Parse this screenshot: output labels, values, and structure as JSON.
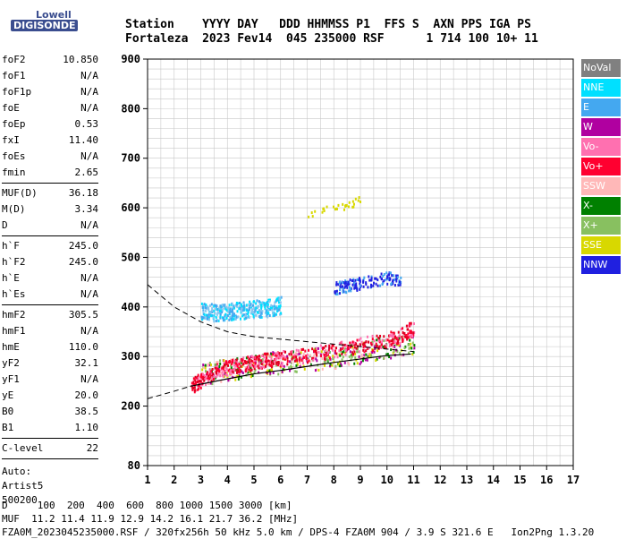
{
  "logo": {
    "line1": "Lowell",
    "line2": "DIGISONDE"
  },
  "header": {
    "line1": "Station    YYYY DAY   DDD HHMMSS P1  FFS S  AXN PPS IGA PS",
    "line2": "Fortaleza  2023 Fev14  045 235000 RSF      1 714 100 10+ 11"
  },
  "params_group1": [
    {
      "name": "foF2",
      "value": "10.850"
    },
    {
      "name": "foF1",
      "value": "N/A"
    },
    {
      "name": "foF1p",
      "value": "N/A"
    },
    {
      "name": "foE",
      "value": "N/A"
    },
    {
      "name": "foEp",
      "value": "0.53"
    },
    {
      "name": "fxI",
      "value": "11.40"
    },
    {
      "name": "foEs",
      "value": "N/A"
    },
    {
      "name": "fmin",
      "value": "2.65"
    }
  ],
  "params_group2": [
    {
      "name": "MUF(D)",
      "value": "36.18"
    },
    {
      "name": "M(D)",
      "value": "3.34"
    },
    {
      "name": "D",
      "value": "N/A"
    }
  ],
  "params_group3": [
    {
      "name": "h`F",
      "value": "245.0"
    },
    {
      "name": "h`F2",
      "value": "245.0"
    },
    {
      "name": "h`E",
      "value": "N/A"
    },
    {
      "name": "h`Es",
      "value": "N/A"
    }
  ],
  "params_group4": [
    {
      "name": "hmF2",
      "value": "305.5"
    },
    {
      "name": "hmF1",
      "value": "N/A"
    },
    {
      "name": "hmE",
      "value": "110.0"
    },
    {
      "name": "yF2",
      "value": "32.1"
    },
    {
      "name": "yF1",
      "value": "N/A"
    },
    {
      "name": "yE",
      "value": "20.0"
    },
    {
      "name": "B0",
      "value": "38.5"
    },
    {
      "name": "B1",
      "value": "1.10"
    }
  ],
  "clevel": {
    "name": "C-level",
    "value": "22"
  },
  "auto": {
    "line1": "Auto:",
    "line2": "Artist5",
    "line3": "500200"
  },
  "legend": [
    {
      "label": "NoVal",
      "color": "#808080"
    },
    {
      "label": "NNE",
      "color": "#00e0ff"
    },
    {
      "label": "E",
      "color": "#44a8f0"
    },
    {
      "label": "W",
      "color": "#b000a0"
    },
    {
      "label": "Vo-",
      "color": "#ff70b0"
    },
    {
      "label": "Vo+",
      "color": "#ff0030"
    },
    {
      "label": "SSW",
      "color": "#ffb8b8"
    },
    {
      "label": "X-",
      "color": "#008000"
    },
    {
      "label": "X+",
      "color": "#88c060"
    },
    {
      "label": "SSE",
      "color": "#d8d800"
    },
    {
      "label": "NNW",
      "color": "#2020e0"
    }
  ],
  "footer": {
    "line1": "D     100  200  400  600  800 1000 1500 3000 [km]",
    "line2": "MUF  11.2 11.4 11.9 12.9 14.2 16.1 21.7 36.2 [MHz]",
    "line3": "FZA0M_2023045235000.RSF / 320fx256h 50 kHz 5.0 km / DPS-4 FZA0M 904 / 3.9 S 321.6 E   Ion2Png 1.3.20"
  },
  "chart_data": {
    "type": "scatter",
    "x_ticks": [
      "1",
      "2",
      "3",
      "4",
      "5",
      "6",
      "7",
      "8",
      "9",
      "10",
      "11",
      "12",
      "13",
      "14",
      "15",
      "16",
      "17"
    ],
    "y_ticks": [
      "80",
      "200",
      "300",
      "400",
      "500",
      "600",
      "700",
      "800",
      "900"
    ],
    "xlim": [
      1,
      17
    ],
    "ylim": [
      80,
      900
    ],
    "grid": true,
    "legend_placement": "right",
    "traces": {
      "o_trace": {
        "x": [
          2.6,
          3.0,
          3.5,
          4.0,
          4.5,
          5.0,
          5.5,
          6.0,
          7.0,
          8.0,
          9.0,
          10.0,
          10.5,
          11.0
        ],
        "y": [
          240,
          255,
          270,
          280,
          285,
          290,
          295,
          298,
          305,
          315,
          325,
          335,
          345,
          360
        ]
      },
      "x_trace_band": {
        "x": [
          3.0,
          4.0,
          5.0,
          6.0,
          7.0,
          8.0,
          9.0,
          10.0,
          11.0
        ],
        "y": [
          265,
          275,
          285,
          290,
          295,
          300,
          310,
          320,
          330
        ]
      },
      "e_trace_band": {
        "x": [
          3.0,
          3.5,
          4.0,
          4.5,
          5.0,
          5.5,
          6.0
        ],
        "y": [
          395,
          390,
          392,
          395,
          398,
          400,
          405
        ]
      },
      "nnw_cluster": {
        "x": [
          8.0,
          8.5,
          9.0,
          10.0,
          10.5
        ],
        "y": [
          440,
          445,
          450,
          460,
          455
        ]
      },
      "sse_high": {
        "x": [
          7.0,
          8.0,
          8.5,
          9.0
        ],
        "y": [
          590,
          600,
          605,
          620
        ]
      }
    },
    "profile_curves": {
      "upper_dashed": {
        "x": [
          1,
          2,
          3,
          4,
          5,
          6,
          7,
          8,
          9,
          10,
          11
        ],
        "y": [
          445,
          400,
          370,
          350,
          340,
          335,
          330,
          325,
          320,
          315,
          310
        ]
      },
      "lower_dashed": {
        "x": [
          1,
          2,
          2.6
        ],
        "y": [
          215,
          230,
          240
        ]
      },
      "solid": {
        "x": [
          2.6,
          4,
          5,
          6,
          7,
          8,
          9,
          10,
          10.9
        ],
        "y": [
          240,
          255,
          265,
          272,
          280,
          288,
          295,
          302,
          305
        ]
      }
    }
  }
}
